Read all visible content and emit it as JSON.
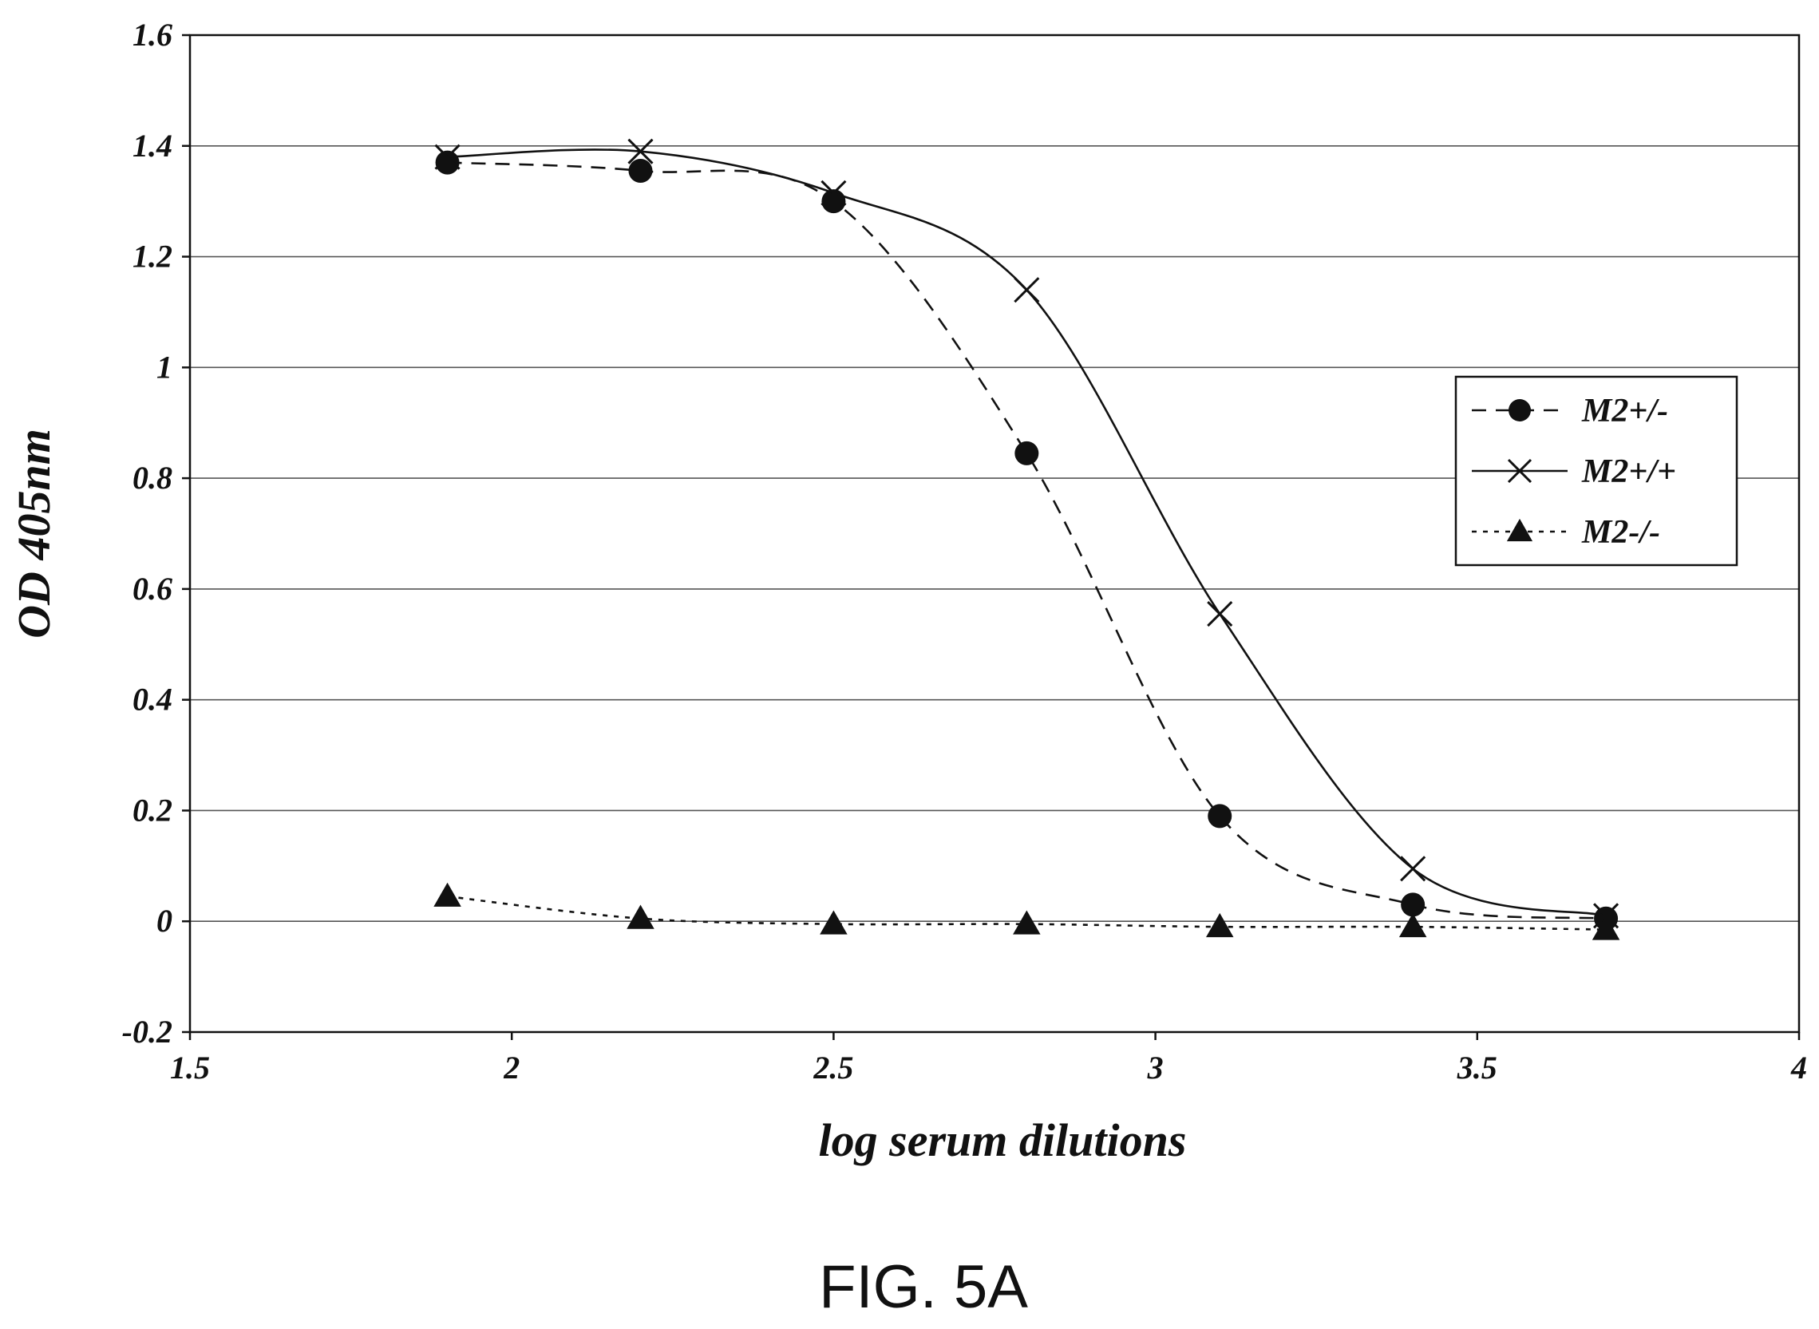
{
  "figure": {
    "caption": "FIG. 5A"
  },
  "chart_data": {
    "type": "line",
    "title": "",
    "xlabel": "log serum dilutions",
    "ylabel": "OD 405nm",
    "xlim": [
      1.5,
      4
    ],
    "ylim": [
      -0.2,
      1.6
    ],
    "x_ticks": [
      "1.5",
      "2",
      "2.5",
      "3",
      "3.5",
      "4"
    ],
    "x_tick_values": [
      1.5,
      2,
      2.5,
      3,
      3.5,
      4
    ],
    "y_ticks": [
      "1.6",
      "1.4",
      "1.2",
      "1",
      "0.8",
      "0.6",
      "0.4",
      "0.2",
      "0",
      "-0.2"
    ],
    "y_tick_values": [
      1.6,
      1.4,
      1.2,
      1.0,
      0.8,
      0.6,
      0.4,
      0.2,
      0,
      -0.2
    ],
    "grid": "horizontal",
    "legend_position": "right",
    "series": [
      {
        "name": "M2+/-",
        "marker": "circle",
        "line_style": "dashed",
        "color": "#111111",
        "x": [
          1.9,
          2.2,
          2.5,
          2.8,
          3.1,
          3.4,
          3.7
        ],
        "y": [
          1.37,
          1.355,
          1.3,
          0.845,
          0.19,
          0.03,
          0.005
        ]
      },
      {
        "name": "M2+/+",
        "marker": "cross",
        "line_style": "solid",
        "color": "#111111",
        "x": [
          1.9,
          2.2,
          2.5,
          2.8,
          3.1,
          3.4,
          3.7
        ],
        "y": [
          1.38,
          1.39,
          1.315,
          1.14,
          0.555,
          0.095,
          0.01
        ]
      },
      {
        "name": "M2-/-",
        "marker": "triangle",
        "line_style": "dotted",
        "color": "#111111",
        "x": [
          1.9,
          2.2,
          2.5,
          2.8,
          3.1,
          3.4,
          3.7
        ],
        "y": [
          0.045,
          0.005,
          -0.005,
          -0.005,
          -0.01,
          -0.01,
          -0.015
        ]
      }
    ]
  }
}
